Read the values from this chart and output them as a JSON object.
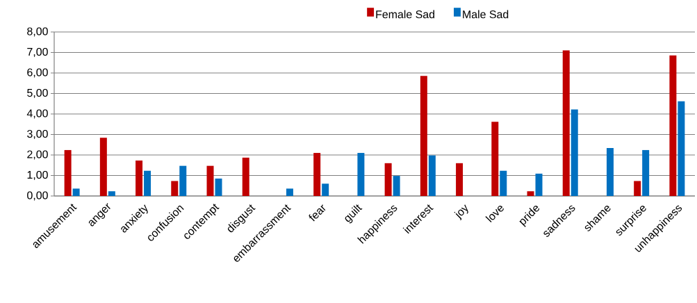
{
  "chart_data": {
    "type": "bar",
    "categories": [
      "amusement",
      "anger",
      "anxiety",
      "confusion",
      "contempt",
      "disgust",
      "embarrassment",
      "fear",
      "guilt",
      "happiness",
      "interest",
      "joy",
      "love",
      "pride",
      "sadness",
      "shame",
      "surprise",
      "unhappiness"
    ],
    "series": [
      {
        "name": "Female Sad",
        "color": "#c00000",
        "values": [
          2.24,
          2.84,
          1.73,
          0.73,
          1.47,
          1.87,
          0,
          2.1,
          0,
          1.6,
          5.86,
          1.6,
          3.62,
          0.23,
          7.1,
          0,
          0.73,
          6.86
        ]
      },
      {
        "name": "Male Sad",
        "color": "#0070c0",
        "values": [
          0.36,
          0.23,
          1.23,
          1.47,
          0.85,
          0,
          0.36,
          0.6,
          2.1,
          0.98,
          1.98,
          0,
          1.23,
          1.09,
          4.22,
          2.34,
          2.24,
          4.62
        ]
      }
    ],
    "ylim": [
      0,
      8
    ],
    "yticks": [
      {
        "value": 0,
        "label": "0,00"
      },
      {
        "value": 1,
        "label": "1,00"
      },
      {
        "value": 2,
        "label": "2,00"
      },
      {
        "value": 3,
        "label": "3,00"
      },
      {
        "value": 4,
        "label": "4,00"
      },
      {
        "value": 5,
        "label": "5,00"
      },
      {
        "value": 6,
        "label": "6,00"
      },
      {
        "value": 7,
        "label": "7,00"
      },
      {
        "value": 8,
        "label": "8,00"
      }
    ],
    "grid": "y",
    "legend": "top"
  }
}
